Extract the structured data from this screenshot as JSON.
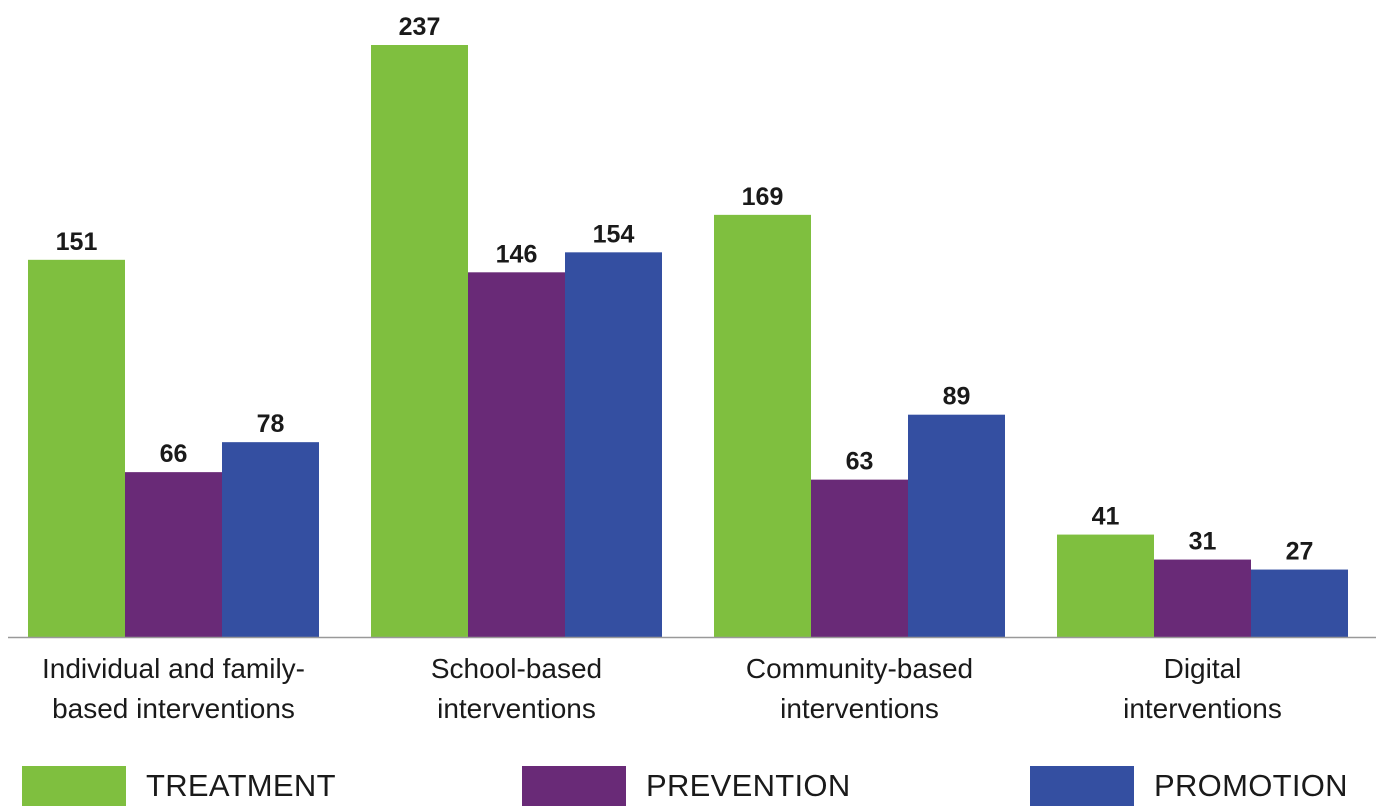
{
  "chart_data": {
    "type": "bar",
    "categories": [
      [
        "Individual and family-",
        "based interventions"
      ],
      [
        "School-based",
        "interventions"
      ],
      [
        "Community-based",
        "interventions"
      ],
      [
        "Digital",
        "interventions"
      ]
    ],
    "series": [
      {
        "name": "TREATMENT",
        "color": "#7FBF3F",
        "values": [
          151,
          237,
          169,
          41
        ]
      },
      {
        "name": "PREVENTION",
        "color": "#692A77",
        "values": [
          66,
          146,
          63,
          31
        ]
      },
      {
        "name": "PROMOTION",
        "color": "#344FA1",
        "values": [
          78,
          154,
          89,
          27
        ]
      }
    ],
    "title": "",
    "xlabel": "",
    "ylabel": "",
    "ylim": [
      0,
      237
    ],
    "grid": false,
    "legend_position": "bottom"
  },
  "colors": {
    "baseline": "#999999",
    "text": "#1a1a1a"
  }
}
